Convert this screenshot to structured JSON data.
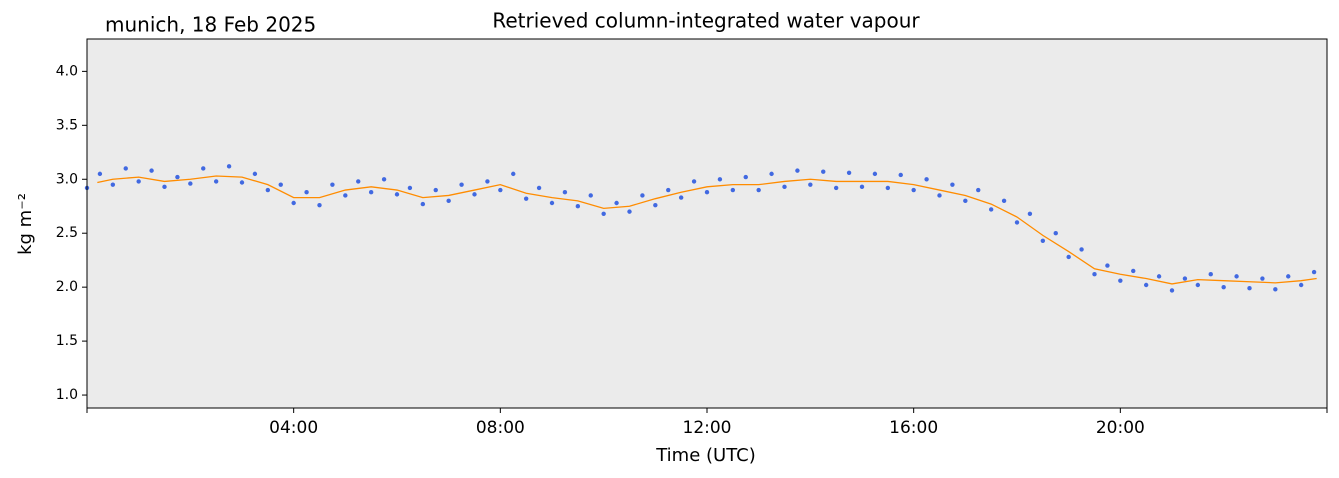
{
  "chart_data": {
    "type": "scatter",
    "title": "Retrieved column-integrated water vapour",
    "annotation": "munich, 18 Feb 2025",
    "xlabel": "Time (UTC)",
    "ylabel": "kg m⁻²",
    "xlim": [
      0,
      24
    ],
    "ylim": [
      0.88,
      4.3
    ],
    "xticks": [
      {
        "value": 4,
        "label": "04:00"
      },
      {
        "value": 8,
        "label": "08:00"
      },
      {
        "value": 12,
        "label": "12:00"
      },
      {
        "value": 16,
        "label": "16:00"
      },
      {
        "value": 20,
        "label": "20:00"
      }
    ],
    "yticks": [
      {
        "value": 1,
        "label": "1.0"
      },
      1.5,
      {
        "value": 2,
        "label": "2.0"
      },
      2.5,
      {
        "value": 3,
        "label": "3.0"
      },
      3.5,
      {
        "value": 4,
        "label": "4.0"
      }
    ],
    "background": "#ebebeb",
    "series": [
      {
        "kind": "points",
        "color": "#4169e1",
        "x": [
          0,
          0.25,
          0.5,
          0.75,
          1,
          1.25,
          1.5,
          1.75,
          2,
          2.25,
          2.5,
          2.75,
          3,
          3.25,
          3.5,
          3.75,
          4,
          4.25,
          4.5,
          4.75,
          5,
          5.25,
          5.5,
          5.75,
          6,
          6.25,
          6.5,
          6.75,
          7,
          7.25,
          7.5,
          7.75,
          8,
          8.25,
          8.5,
          8.75,
          9,
          9.25,
          9.5,
          9.75,
          10,
          10.25,
          10.5,
          10.75,
          11,
          11.25,
          11.5,
          11.75,
          12,
          12.25,
          12.5,
          12.75,
          13,
          13.25,
          13.5,
          13.75,
          14,
          14.25,
          14.5,
          14.75,
          15,
          15.25,
          15.5,
          15.75,
          16,
          16.25,
          16.5,
          16.75,
          17,
          17.25,
          17.5,
          17.75,
          18,
          18.25,
          18.5,
          18.75,
          19,
          19.25,
          19.5,
          19.75,
          20,
          20.25,
          20.5,
          20.75,
          21,
          21.25,
          21.5,
          21.75,
          22,
          22.25,
          22.5,
          22.75,
          23,
          23.25,
          23.5,
          23.75
        ],
        "values": [
          2.92,
          3.05,
          2.95,
          3.1,
          2.98,
          3.08,
          2.93,
          3.02,
          2.96,
          3.1,
          2.98,
          3.12,
          2.97,
          3.05,
          2.9,
          2.95,
          2.78,
          2.88,
          2.76,
          2.95,
          2.85,
          2.98,
          2.88,
          3.0,
          2.86,
          2.92,
          2.77,
          2.9,
          2.8,
          2.95,
          2.86,
          2.98,
          2.9,
          3.05,
          2.82,
          2.92,
          2.78,
          2.88,
          2.75,
          2.85,
          2.68,
          2.78,
          2.7,
          2.85,
          2.76,
          2.9,
          2.83,
          2.98,
          2.88,
          3.0,
          2.9,
          3.02,
          2.9,
          3.05,
          2.93,
          3.08,
          2.95,
          3.07,
          2.92,
          3.06,
          2.93,
          3.05,
          2.92,
          3.04,
          2.9,
          3.0,
          2.85,
          2.95,
          2.8,
          2.9,
          2.72,
          2.8,
          2.6,
          2.68,
          2.43,
          2.5,
          2.28,
          2.35,
          2.12,
          2.2,
          2.06,
          2.15,
          2.02,
          2.1,
          1.97,
          2.08,
          2.02,
          2.12,
          2.0,
          2.1,
          1.99,
          2.08,
          1.98,
          2.1,
          2.02,
          2.14
        ]
      },
      {
        "kind": "line",
        "color": "#ff8c00",
        "x": [
          0.2,
          0.5,
          1,
          1.5,
          2,
          2.5,
          3,
          3.5,
          4,
          4.5,
          5,
          5.5,
          6,
          6.5,
          7,
          7.5,
          8,
          8.5,
          9,
          9.5,
          10,
          10.5,
          11,
          11.5,
          12,
          12.5,
          13,
          13.5,
          14,
          14.5,
          15,
          15.5,
          16,
          16.5,
          17,
          17.5,
          18,
          18.5,
          19,
          19.5,
          20,
          20.5,
          21,
          21.5,
          22,
          22.5,
          23,
          23.5,
          23.8
        ],
        "values": [
          2.97,
          3.0,
          3.02,
          2.98,
          3.0,
          3.03,
          3.02,
          2.95,
          2.83,
          2.83,
          2.9,
          2.93,
          2.9,
          2.83,
          2.85,
          2.9,
          2.95,
          2.87,
          2.83,
          2.8,
          2.73,
          2.75,
          2.82,
          2.88,
          2.93,
          2.95,
          2.95,
          2.98,
          3.0,
          2.98,
          2.98,
          2.98,
          2.95,
          2.9,
          2.85,
          2.77,
          2.65,
          2.48,
          2.33,
          2.17,
          2.12,
          2.08,
          2.03,
          2.07,
          2.06,
          2.05,
          2.04,
          2.06,
          2.08
        ]
      }
    ]
  }
}
